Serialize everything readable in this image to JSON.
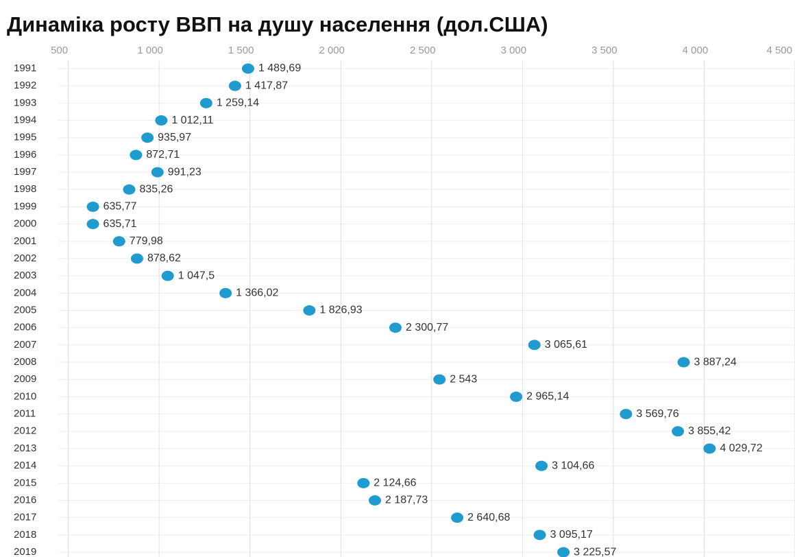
{
  "chart_data": {
    "type": "dot",
    "title": "Динаміка росту ВВП на душу населення (дол.США)",
    "categories": [
      "1991",
      "1992",
      "1993",
      "1994",
      "1995",
      "1996",
      "1997",
      "1998",
      "1999",
      "2000",
      "2001",
      "2002",
      "2003",
      "2004",
      "2005",
      "2006",
      "2007",
      "2008",
      "2009",
      "2010",
      "2011",
      "2012",
      "2013",
      "2014",
      "2015",
      "2016",
      "2017",
      "2018",
      "2019"
    ],
    "values": [
      1489.69,
      1417.87,
      1259.14,
      1012.11,
      935.97,
      872.71,
      991.23,
      835.26,
      635.77,
      635.71,
      779.98,
      878.62,
      1047.5,
      1366.02,
      1826.93,
      2300.77,
      3065.61,
      3887.24,
      2543,
      2965.14,
      3569.76,
      3855.42,
      4029.72,
      3104.66,
      2124.66,
      2187.73,
      2640.68,
      3095.17,
      3225.57
    ],
    "value_labels": [
      "1 489,69",
      "1 417,87",
      "1 259,14",
      "1 012,11",
      "935,97",
      "872,71",
      "991,23",
      "835,26",
      "635,77",
      "635,71",
      "779,98",
      "878,62",
      "1 047,5",
      "1 366,02",
      "1 826,93",
      "2 300,77",
      "3 065,61",
      "3 887,24",
      "2 543",
      "2 965,14",
      "3 569,76",
      "3 855,42",
      "4 029,72",
      "3 104,66",
      "2 124,66",
      "2 187,73",
      "2 640,68",
      "3 095,17",
      "3 225,57"
    ],
    "color": "#1f9bcf",
    "xlim": [
      445,
      4500
    ],
    "xticks": [
      500,
      {
        "value": 1000,
        "label": "1 000"
      },
      {
        "value": 1500,
        "label": "1 500"
      },
      {
        "value": 2000,
        "label": "2 000"
      },
      {
        "value": 2500,
        "label": "2 500"
      },
      {
        "value": 3000,
        "label": "3 000"
      },
      {
        "value": 3500,
        "label": "3 500"
      },
      {
        "value": 4000,
        "label": "4 000"
      },
      {
        "value": 4500,
        "label": "4 500"
      }
    ],
    "grid": true
  }
}
